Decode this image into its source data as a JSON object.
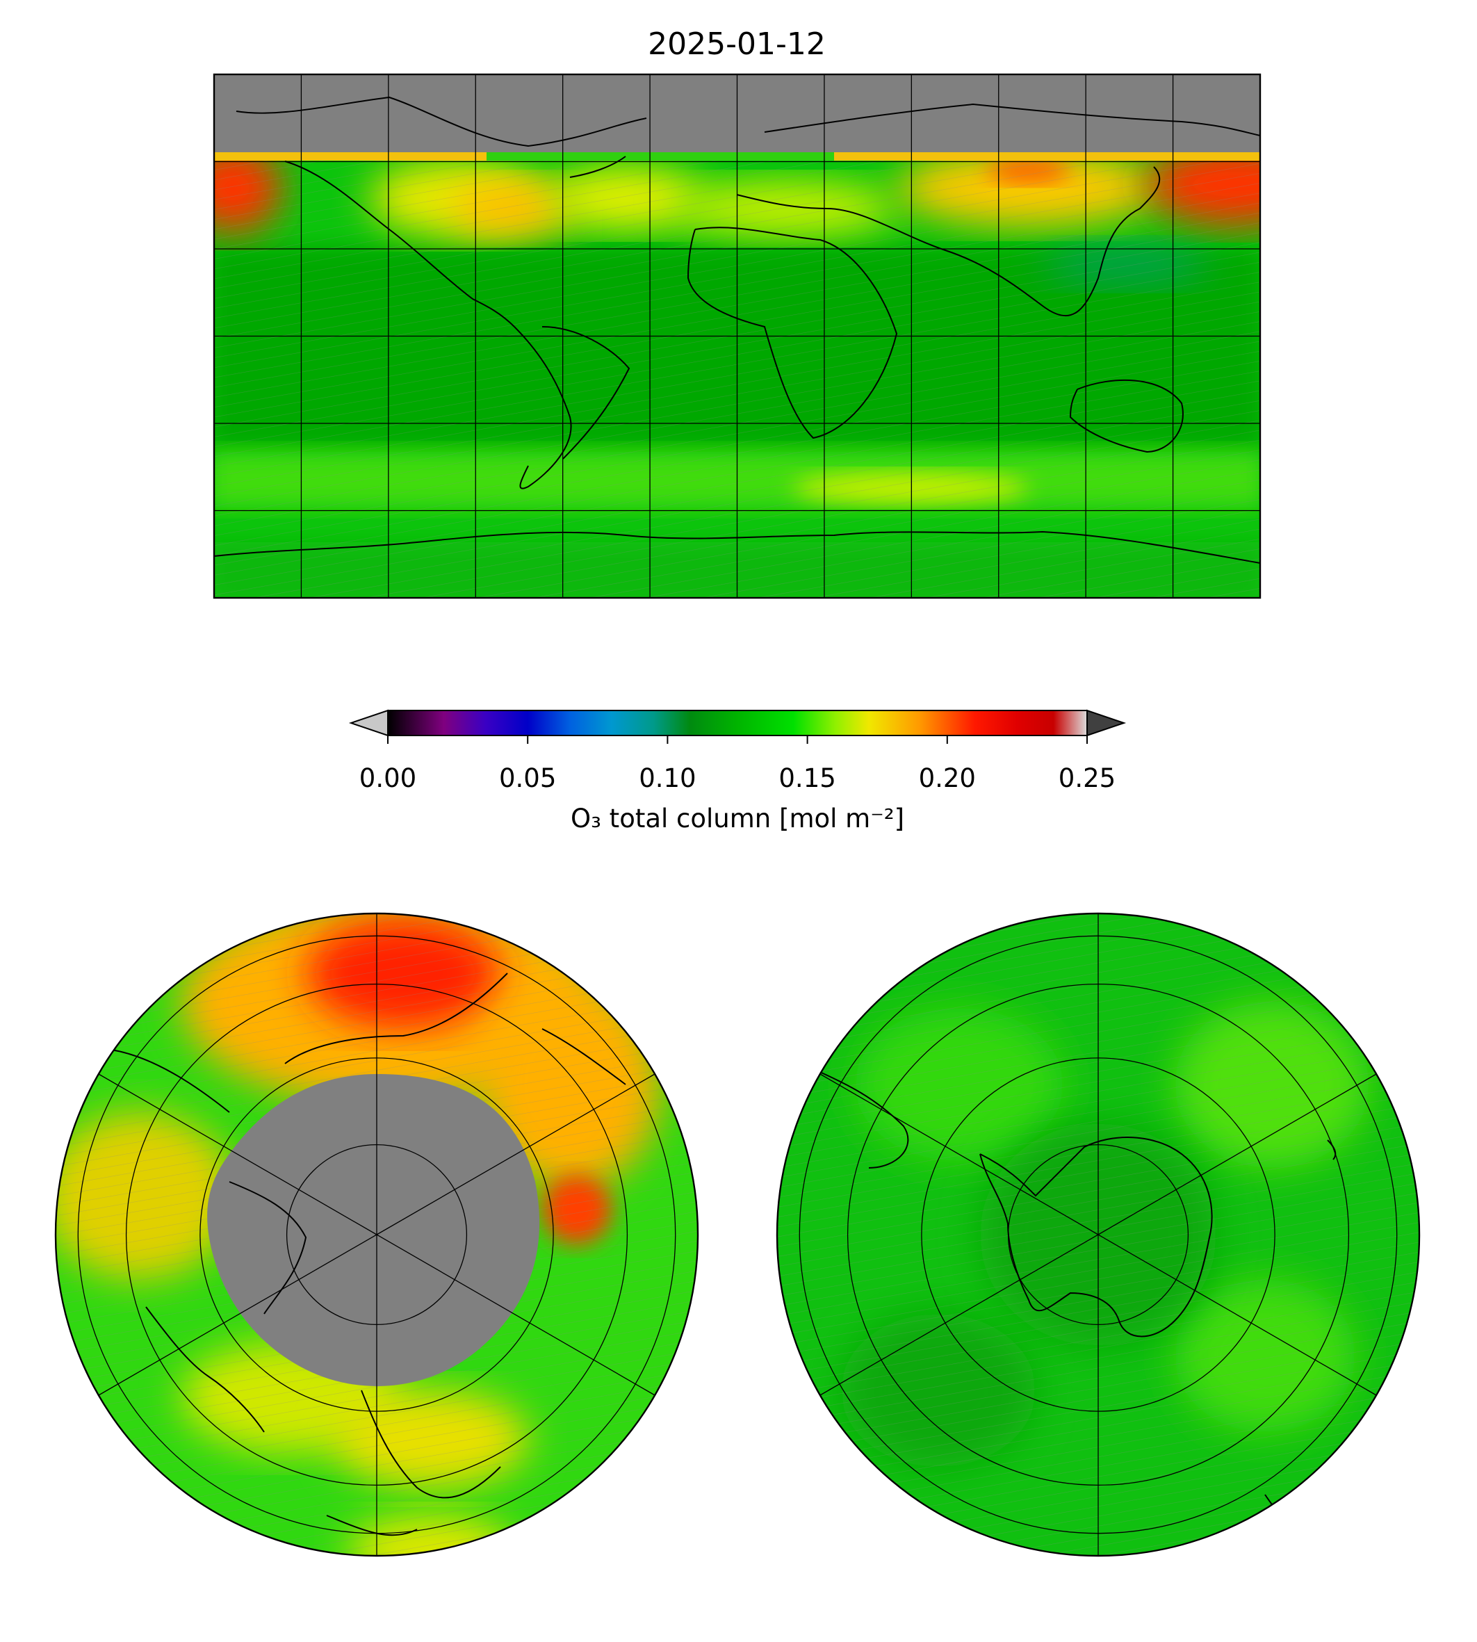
{
  "title": "2025-01-12",
  "colorbar": {
    "label": "O₃ total column [mol m⁻²]",
    "ticks": [
      "0.00",
      "0.05",
      "0.10",
      "0.15",
      "0.20",
      "0.25"
    ],
    "range": [
      0.0,
      0.25
    ],
    "extend": "both",
    "under_color": "#c8c8c8",
    "over_color": "#404040",
    "stops": [
      {
        "v": 0.0,
        "c": "#000000"
      },
      {
        "v": 0.02,
        "c": "#7f007f"
      },
      {
        "v": 0.035,
        "c": "#3a00c4"
      },
      {
        "v": 0.05,
        "c": "#0000c8"
      },
      {
        "v": 0.065,
        "c": "#0060e0"
      },
      {
        "v": 0.08,
        "c": "#0098d0"
      },
      {
        "v": 0.095,
        "c": "#009a8a"
      },
      {
        "v": 0.108,
        "c": "#008a10"
      },
      {
        "v": 0.125,
        "c": "#00b400"
      },
      {
        "v": 0.145,
        "c": "#00e000"
      },
      {
        "v": 0.16,
        "c": "#90f000"
      },
      {
        "v": 0.172,
        "c": "#f0e800"
      },
      {
        "v": 0.19,
        "c": "#ff9a00"
      },
      {
        "v": 0.21,
        "c": "#ff1800"
      },
      {
        "v": 0.225,
        "c": "#e00000"
      },
      {
        "v": 0.238,
        "c": "#c80000"
      },
      {
        "v": 0.25,
        "c": "#dcdcdc"
      }
    ]
  },
  "global_map": {
    "projection": "equirectangular",
    "gridlines": {
      "lon_step_deg": 30,
      "lat_step_deg": 30
    },
    "missing_color": "#808080",
    "no_data_north_of_lat": 60,
    "dominant_value": 0.14,
    "regions": [
      {
        "name": "north-pacific-high",
        "value": 0.21
      },
      {
        "name": "eastern-siberia-high",
        "value": 0.21
      },
      {
        "name": "north-america-band",
        "value": 0.18
      },
      {
        "name": "north-atlantic-band",
        "value": 0.175
      },
      {
        "name": "eurasia-band",
        "value": 0.17
      },
      {
        "name": "tropics",
        "value": 0.125
      },
      {
        "name": "southern-midlatitude-band",
        "value": 0.15
      },
      {
        "name": "antarctica",
        "value": 0.13
      }
    ]
  },
  "north_polar_map": {
    "projection": "north-polar-stereographic",
    "missing_color": "#808080",
    "dominant_value": 0.16,
    "regions": [
      {
        "name": "kamchatka-high",
        "value": 0.215
      },
      {
        "name": "pacific-band",
        "value": 0.19
      },
      {
        "name": "atlantic-band",
        "value": 0.155
      }
    ]
  },
  "south_polar_map": {
    "projection": "south-polar-stereographic",
    "dominant_value": 0.135,
    "regions": [
      {
        "name": "antarctic-interior",
        "value": 0.125
      },
      {
        "name": "southern-ocean",
        "value": 0.145
      }
    ]
  }
}
